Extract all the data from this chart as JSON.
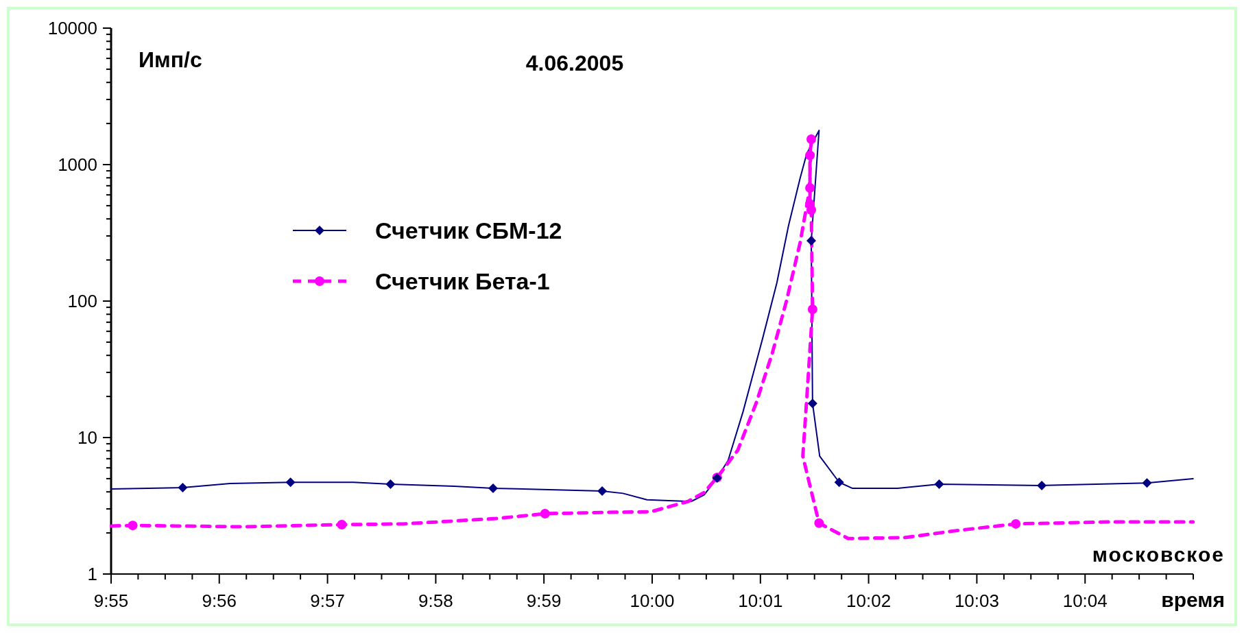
{
  "chart_data": {
    "type": "line",
    "title": "4.06.2005",
    "ylabel": "Имп/с",
    "xlabel": "московское время",
    "log": "y",
    "grid": false,
    "legend": "top left",
    "xlim": [
      9.91667,
      10.08333
    ],
    "xticks": [
      {
        "value": 9.91667,
        "label": "9:55"
      },
      {
        "value": 9.92083,
        "label": null
      },
      {
        "value": 9.925,
        "label": null
      },
      {
        "value": 9.92917,
        "label": null
      },
      {
        "value": 9.93333,
        "label": "9:56"
      },
      {
        "value": 9.9375,
        "label": null
      },
      {
        "value": 9.94167,
        "label": null
      },
      {
        "value": 9.94583,
        "label": null
      },
      {
        "value": 9.95,
        "label": "9:57"
      },
      {
        "value": 9.95417,
        "label": null
      },
      {
        "value": 9.95833,
        "label": null
      },
      {
        "value": 9.9625,
        "label": null
      },
      {
        "value": 9.96667,
        "label": "9:58"
      },
      {
        "value": 9.97083,
        "label": null
      },
      {
        "value": 9.975,
        "label": null
      },
      {
        "value": 9.97917,
        "label": null
      },
      {
        "value": 9.98333,
        "label": "9:59"
      },
      {
        "value": 9.9875,
        "label": null
      },
      {
        "value": 9.99167,
        "label": null
      },
      {
        "value": 9.99583,
        "label": null
      },
      {
        "value": 10,
        "label": "10:00"
      },
      {
        "value": 10.00417,
        "label": null
      },
      {
        "value": 10.00833,
        "label": null
      },
      {
        "value": 10.0125,
        "label": null
      },
      {
        "value": 10.01667,
        "label": "10:01"
      },
      {
        "value": 10.02083,
        "label": null
      },
      {
        "value": 10.025,
        "label": null
      },
      {
        "value": 10.02917,
        "label": null
      },
      {
        "value": 10.03333,
        "label": "10:02"
      },
      {
        "value": 10.0375,
        "label": null
      },
      {
        "value": 10.04167,
        "label": null
      },
      {
        "value": 10.04583,
        "label": null
      },
      {
        "value": 10.05,
        "label": "10:03"
      },
      {
        "value": 10.05417,
        "label": null
      },
      {
        "value": 10.05833,
        "label": null
      },
      {
        "value": 10.0625,
        "label": null
      },
      {
        "value": 10.06667,
        "label": "10:04"
      },
      {
        "value": 10.07083,
        "label": null
      },
      {
        "value": 10.075,
        "label": null
      },
      {
        "value": 10.07917,
        "label": null
      },
      {
        "value": 10.08333,
        "label": null
      }
    ],
    "ylim": [
      1,
      10000
    ],
    "yticks": [
      1,
      {
        "value": 2,
        "label": null
      },
      {
        "value": 3,
        "label": null
      },
      {
        "value": 4,
        "label": null
      },
      {
        "value": 5,
        "label": null
      },
      {
        "value": 6,
        "label": null
      },
      {
        "value": 7,
        "label": null
      },
      {
        "value": 8,
        "label": null
      },
      {
        "value": 9,
        "label": null
      },
      10,
      {
        "value": 20,
        "label": null
      },
      {
        "value": 30,
        "label": null
      },
      {
        "value": 40,
        "label": null
      },
      {
        "value": 50,
        "label": null
      },
      {
        "value": 60,
        "label": null
      },
      {
        "value": 70,
        "label": null
      },
      {
        "value": 80,
        "label": null
      },
      {
        "value": 90,
        "label": null
      },
      100,
      {
        "value": 200,
        "label": null
      },
      {
        "value": 300,
        "label": null
      },
      {
        "value": 400,
        "label": null
      },
      {
        "value": 500,
        "label": null
      },
      {
        "value": 600,
        "label": null
      },
      {
        "value": 700,
        "label": null
      },
      {
        "value": 800,
        "label": null
      },
      {
        "value": 900,
        "label": null
      },
      1000,
      {
        "value": 2000,
        "label": null
      },
      {
        "value": 3000,
        "label": null
      },
      {
        "value": 4000,
        "label": null
      },
      {
        "value": 5000,
        "label": null
      },
      {
        "value": 6000,
        "label": null
      },
      {
        "value": 7000,
        "label": null
      },
      {
        "value": 8000,
        "label": null
      },
      {
        "value": 9000,
        "label": null
      },
      10000
    ],
    "series": [
      {
        "name": "Счетчик СБМ-12",
        "color": "#000080",
        "line_style": "solid",
        "marker": "none",
        "x": [
          9.9167,
          9.9277,
          9.935,
          9.9443,
          9.954,
          9.9597,
          9.9695,
          9.9755,
          9.9923,
          9.9955,
          9.9992,
          10.006,
          10.008,
          10.01,
          10.0117,
          10.014,
          10.017,
          10.0192,
          10.021,
          10.0228,
          10.0238,
          10.0257,
          10.0245,
          10.0247,
          10.0258,
          10.0288,
          10.0308,
          10.0378,
          10.0442,
          10.06,
          10.0762,
          10.0833
        ],
        "values": [
          4.2,
          4.3,
          4.6,
          4.7,
          4.7,
          4.55,
          4.4,
          4.25,
          4.06,
          3.9,
          3.5,
          3.4,
          3.8,
          5.05,
          6.8,
          15.5,
          53,
          136,
          357,
          800,
          1200,
          1780,
          277,
          17.8,
          7.3,
          4.7,
          4.25,
          4.25,
          4.55,
          4.45,
          4.65,
          5.0
        ]
      },
      {
        "type": "scatter",
        "color": "#000080",
        "marker": "diamond",
        "x": [
          9.9277,
          9.9443,
          9.9597,
          9.9755,
          9.9923,
          10.01,
          10.0245,
          10.0247,
          10.0288,
          10.0442,
          10.06,
          10.0762
        ],
        "values": [
          4.3,
          4.7,
          4.55,
          4.25,
          4.06,
          5.05,
          277,
          17.8,
          4.7,
          4.55,
          4.45,
          4.65
        ]
      },
      {
        "name": "Счетчик Бета-1",
        "color": "#ff00ff",
        "line_style": "dashed",
        "marker": "none",
        "x": [
          9.9167,
          9.92,
          9.9368,
          9.9522,
          9.9617,
          9.976,
          9.9835,
          9.9928,
          9.9998,
          10.0055,
          10.008,
          10.01,
          10.0132,
          10.016,
          10.0185,
          10.0207,
          10.0228,
          10.0242,
          10.0245,
          10.0243,
          10.0243,
          10.0243,
          10.0245,
          10.0247,
          10.0238,
          10.0232,
          10.0257,
          10.0302,
          10.039,
          10.0465,
          10.056,
          10.0702,
          10.0833
        ],
        "values": [
          2.25,
          2.27,
          2.22,
          2.3,
          2.33,
          2.55,
          2.77,
          2.83,
          2.86,
          3.4,
          3.96,
          5.1,
          8.1,
          17.8,
          41.5,
          101,
          270,
          640,
          1535,
          1170,
          675,
          515,
          465,
          87,
          19,
          7.3,
          2.36,
          1.82,
          1.85,
          2.07,
          2.33,
          2.41,
          2.41
        ]
      },
      {
        "type": "scatter",
        "color": "#ff00ff",
        "marker": "circle",
        "x": [
          9.92,
          9.9522,
          9.9835,
          10.01,
          10.0245,
          10.0243,
          10.0243,
          10.0243,
          10.0245,
          10.0247,
          10.0257,
          10.056
        ],
        "values": [
          2.27,
          2.3,
          2.77,
          5.1,
          1535,
          1170,
          675,
          515,
          465,
          87,
          2.36,
          2.33
        ]
      }
    ]
  }
}
